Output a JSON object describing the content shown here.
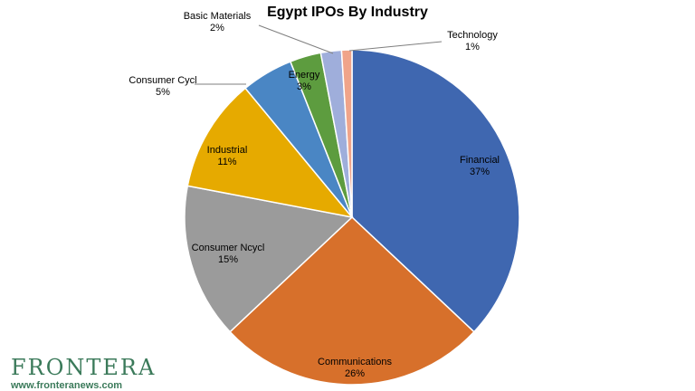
{
  "chart_data": {
    "type": "pie",
    "title": "Egypt IPOs By Industry",
    "slices": [
      {
        "name": "Financial",
        "value": 37,
        "label": "37%",
        "color": "#3f67b0"
      },
      {
        "name": "Communications",
        "value": 26,
        "label": "26%",
        "color": "#d7702b"
      },
      {
        "name": "Consumer Ncycl",
        "value": 15,
        "label": "15%",
        "color": "#9b9b9b"
      },
      {
        "name": "Industrial",
        "value": 11,
        "label": "11%",
        "color": "#e6aa00"
      },
      {
        "name": "Consumer Cycl",
        "value": 5,
        "label": "5%",
        "color": "#4a86c4"
      },
      {
        "name": "Energy",
        "value": 3,
        "label": "3%",
        "color": "#5d9c3f"
      },
      {
        "name": "Basic Materials",
        "value": 2,
        "label": "2%",
        "color": "#9faedb"
      },
      {
        "name": "Technology",
        "value": 1,
        "label": "1%",
        "color": "#f0a48a"
      }
    ]
  },
  "watermark": {
    "name": "FRONTERA",
    "url": "www.fronteranews.com",
    "color": "#3b7a5a"
  }
}
